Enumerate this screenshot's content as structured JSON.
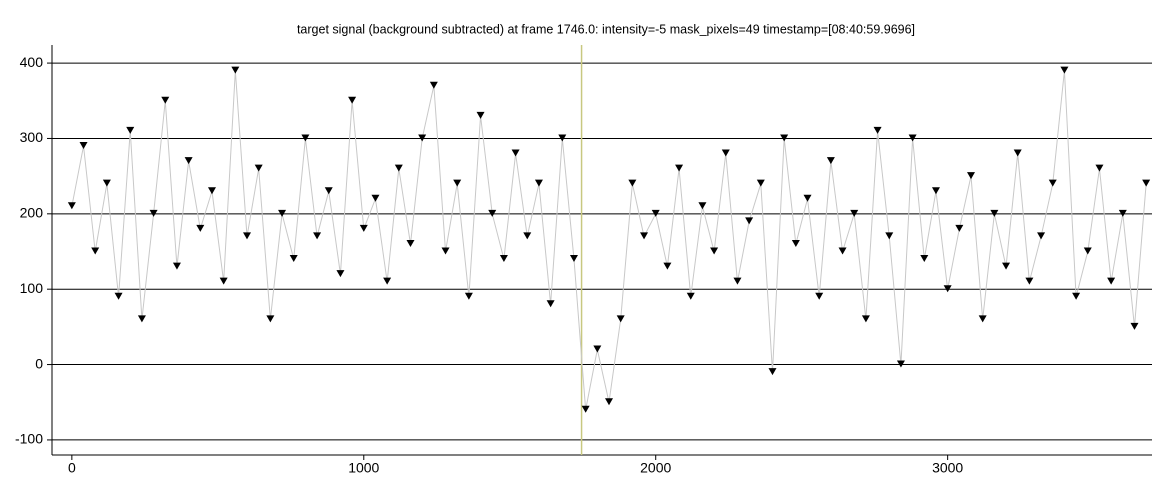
{
  "chart_data": {
    "type": "scatter",
    "title": "target signal (background subtracted) at frame 1746.0: intensity=-5 mask_pixels=49 timestamp=[08:40:59.9696]",
    "x": [
      0,
      40,
      80,
      120,
      160,
      200,
      240,
      280,
      320,
      360,
      400,
      440,
      480,
      520,
      560,
      600,
      640,
      680,
      720,
      760,
      800,
      840,
      880,
      920,
      960,
      1000,
      1040,
      1080,
      1120,
      1160,
      1200,
      1240,
      1280,
      1320,
      1360,
      1400,
      1440,
      1480,
      1520,
      1560,
      1600,
      1640,
      1680,
      1720,
      1760,
      1800,
      1840,
      1880,
      1920,
      1960,
      2000,
      2040,
      2080,
      2120,
      2160,
      2200,
      2240,
      2280,
      2320,
      2360,
      2400,
      2440,
      2480,
      2520,
      2560,
      2600,
      2640,
      2680,
      2720,
      2760,
      2800,
      2840,
      2880,
      2920,
      2960,
      3000,
      3040,
      3080,
      3120,
      3160,
      3200,
      3240,
      3280,
      3320,
      3360,
      3400,
      3440,
      3480,
      3520,
      3560,
      3600,
      3640,
      3680
    ],
    "values": [
      210,
      290,
      150,
      240,
      90,
      310,
      60,
      200,
      350,
      130,
      270,
      180,
      230,
      110,
      390,
      170,
      260,
      60,
      200,
      140,
      300,
      170,
      230,
      120,
      350,
      180,
      220,
      110,
      260,
      160,
      300,
      370,
      150,
      240,
      90,
      330,
      200,
      140,
      280,
      170,
      240,
      80,
      300,
      140,
      -60,
      20,
      -50,
      60,
      240,
      170,
      200,
      130,
      260,
      90,
      210,
      150,
      280,
      110,
      190,
      240,
      -10,
      300,
      160,
      220,
      90,
      270,
      150,
      200,
      60,
      310,
      170,
      0,
      300,
      140,
      230,
      100,
      180,
      250,
      60,
      200,
      130,
      280,
      110,
      170,
      240,
      390,
      90,
      150,
      260,
      110,
      200,
      50,
      240
    ],
    "color": "#000000",
    "line_color": "#c8c8c8",
    "cursor": 1746,
    "cursor_color": "#c8c880",
    "xlim": [
      -68,
      3700
    ],
    "xticks": [
      0,
      1000,
      2000,
      3000
    ],
    "ylim": [
      -120,
      424
    ],
    "yticks": [
      -100,
      0,
      100,
      200,
      300,
      400
    ],
    "grid": true
  }
}
